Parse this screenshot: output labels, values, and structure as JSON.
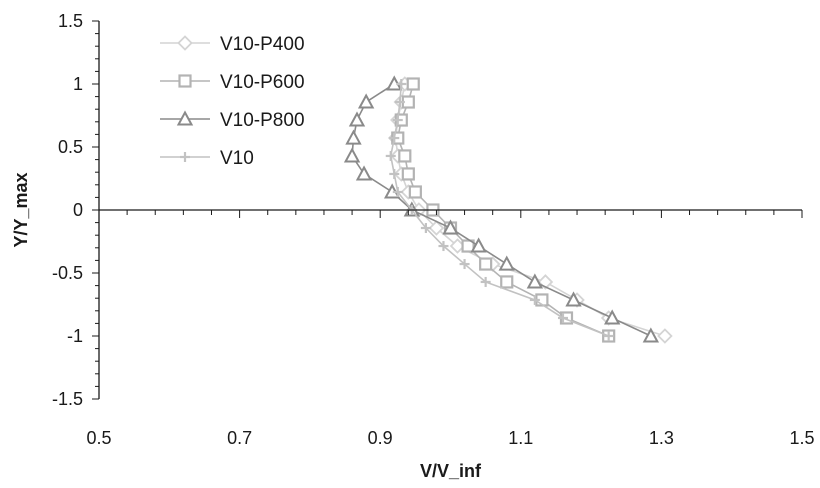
{
  "chart_data": {
    "type": "scatter",
    "title": "",
    "xlabel": "V/V_inf",
    "ylabel": "Y/Y_max",
    "xlim": [
      0.5,
      1.5
    ],
    "ylim": [
      -1.5,
      1.5
    ],
    "x_ticks": [
      "0.5",
      "0.7",
      "0.9",
      "1.1",
      "1.3",
      "1.5"
    ],
    "y_ticks": [
      "1.5",
      "1",
      "0.5",
      "0",
      "-0.5",
      "-1",
      "-1.5"
    ],
    "grid": false,
    "legend_position": "top-left",
    "series": [
      {
        "name": "V10-P400",
        "marker": "diamond",
        "color": "#d4d4d4",
        "points": [
          [
            0.935,
            1.0
          ],
          [
            0.93,
            0.857
          ],
          [
            0.925,
            0.714
          ],
          [
            0.922,
            0.571
          ],
          [
            0.925,
            0.429
          ],
          [
            0.93,
            0.286
          ],
          [
            0.94,
            0.143
          ],
          [
            0.955,
            0.0
          ],
          [
            0.98,
            -0.143
          ],
          [
            1.01,
            -0.286
          ],
          [
            1.06,
            -0.429
          ],
          [
            1.135,
            -0.571
          ],
          [
            1.18,
            -0.714
          ],
          [
            1.225,
            -0.857
          ],
          [
            1.305,
            -1.0
          ]
        ]
      },
      {
        "name": "V10-P600",
        "marker": "square",
        "color": "#b3b3b3",
        "points": [
          [
            0.947,
            1.0
          ],
          [
            0.94,
            0.857
          ],
          [
            0.93,
            0.714
          ],
          [
            0.925,
            0.571
          ],
          [
            0.935,
            0.429
          ],
          [
            0.94,
            0.286
          ],
          [
            0.95,
            0.143
          ],
          [
            0.975,
            0.0
          ],
          [
            1.0,
            -0.143
          ],
          [
            1.025,
            -0.286
          ],
          [
            1.05,
            -0.429
          ],
          [
            1.08,
            -0.571
          ],
          [
            1.13,
            -0.714
          ],
          [
            1.165,
            -0.857
          ],
          [
            1.225,
            -1.0
          ]
        ]
      },
      {
        "name": "V10-P800",
        "marker": "triangle",
        "color": "#8a8a8a",
        "points": [
          [
            0.92,
            1.0
          ],
          [
            0.88,
            0.857
          ],
          [
            0.867,
            0.714
          ],
          [
            0.862,
            0.571
          ],
          [
            0.86,
            0.429
          ],
          [
            0.877,
            0.286
          ],
          [
            0.917,
            0.143
          ],
          [
            0.945,
            0.0
          ],
          [
            1.0,
            -0.143
          ],
          [
            1.04,
            -0.286
          ],
          [
            1.08,
            -0.429
          ],
          [
            1.12,
            -0.571
          ],
          [
            1.175,
            -0.714
          ],
          [
            1.23,
            -0.857
          ],
          [
            1.285,
            -1.0
          ]
        ]
      },
      {
        "name": "V10",
        "marker": "plus",
        "color": "#c2c2c2",
        "points": [
          [
            0.93,
            1.0
          ],
          [
            0.928,
            0.857
          ],
          [
            0.925,
            0.714
          ],
          [
            0.92,
            0.571
          ],
          [
            0.915,
            0.429
          ],
          [
            0.92,
            0.286
          ],
          [
            0.925,
            0.143
          ],
          [
            0.945,
            0.0
          ],
          [
            0.965,
            -0.143
          ],
          [
            0.99,
            -0.286
          ],
          [
            1.02,
            -0.429
          ],
          [
            1.05,
            -0.571
          ],
          [
            1.12,
            -0.714
          ],
          [
            1.16,
            -0.857
          ],
          [
            1.225,
            -1.0
          ]
        ]
      }
    ]
  }
}
